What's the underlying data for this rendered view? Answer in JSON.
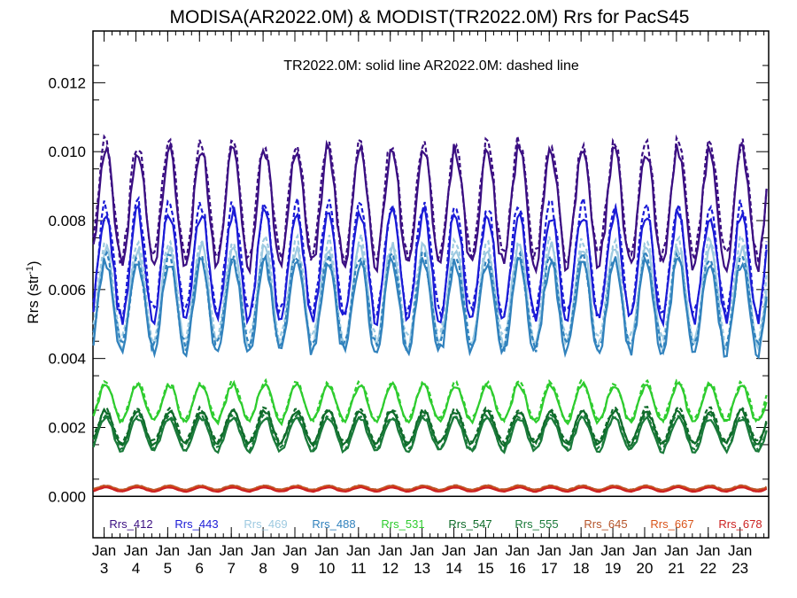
{
  "chart_data": {
    "type": "line",
    "title": "MODISA(AR2022.0M) & MODIST(TR2022.0M)  Rrs for PacS45",
    "subtitle": "TR2022.0M: solid line   AR2022.0M: dashed line",
    "ylabel": "Rrs (str",
    "ylabel_sup": "-1",
    "ylabel_end": ")",
    "ylim": [
      -0.0012,
      0.0135
    ],
    "xlim": [
      2002.65,
      2023.9
    ],
    "yticks": [
      "0.000",
      "0.002",
      "0.004",
      "0.006",
      "0.008",
      "0.010",
      "0.012"
    ],
    "xticks": [
      {
        "month": "Jan",
        "year": "3"
      },
      {
        "month": "Jan",
        "year": "4"
      },
      {
        "month": "Jan",
        "year": "5"
      },
      {
        "month": "Jan",
        "year": "6"
      },
      {
        "month": "Jan",
        "year": "7"
      },
      {
        "month": "Jan",
        "year": "8"
      },
      {
        "month": "Jan",
        "year": "9"
      },
      {
        "month": "Jan",
        "year": "10"
      },
      {
        "month": "Jan",
        "year": "11"
      },
      {
        "month": "Jan",
        "year": "12"
      },
      {
        "month": "Jan",
        "year": "13"
      },
      {
        "month": "Jan",
        "year": "14"
      },
      {
        "month": "Jan",
        "year": "15"
      },
      {
        "month": "Jan",
        "year": "16"
      },
      {
        "month": "Jan",
        "year": "17"
      },
      {
        "month": "Jan",
        "year": "18"
      },
      {
        "month": "Jan",
        "year": "19"
      },
      {
        "month": "Jan",
        "year": "20"
      },
      {
        "month": "Jan",
        "year": "21"
      },
      {
        "month": "Jan",
        "year": "22"
      },
      {
        "month": "Jan",
        "year": "23"
      }
    ],
    "x_start": 2002.5,
    "x_end": 2023.9,
    "grid": false,
    "legend_placement": "bottom",
    "series": [
      {
        "name": "Rrs_412",
        "color": "#3b0f82",
        "base": 0.0084,
        "amp": 0.0014,
        "phase": 0.0
      },
      {
        "name": "Rrs_443",
        "color": "#1b1bd6",
        "base": 0.0067,
        "amp": 0.0013,
        "phase": 0.0
      },
      {
        "name": "Rrs_469",
        "color": "#9ecae1",
        "base": 0.0058,
        "amp": 0.0012,
        "phase": 0.0
      },
      {
        "name": "Rrs_488",
        "color": "#3182bd",
        "base": 0.0055,
        "amp": 0.0011,
        "phase": 0.0
      },
      {
        "name": "Rrs_531",
        "color": "#2ecc2e",
        "base": 0.0027,
        "amp": 0.00045,
        "phase": 0.0
      },
      {
        "name": "Rrs_547",
        "color": "#0f6b2a",
        "base": 0.002,
        "amp": 0.0004,
        "phase": 0.0
      },
      {
        "name": "Rrs_555",
        "color": "#1a7a3a",
        "base": 0.0018,
        "amp": 0.0004,
        "phase": 0.0
      },
      {
        "name": "Rrs_645",
        "color": "#b5542a",
        "base": 0.00025,
        "amp": 5e-05,
        "phase": 0.0
      },
      {
        "name": "Rrs_667",
        "color": "#d9541a",
        "base": 0.00022,
        "amp": 5e-05,
        "phase": 0.0
      },
      {
        "name": "Rrs_678",
        "color": "#cc2222",
        "base": 0.0002,
        "amp": 5e-05,
        "phase": 0.0
      }
    ]
  }
}
